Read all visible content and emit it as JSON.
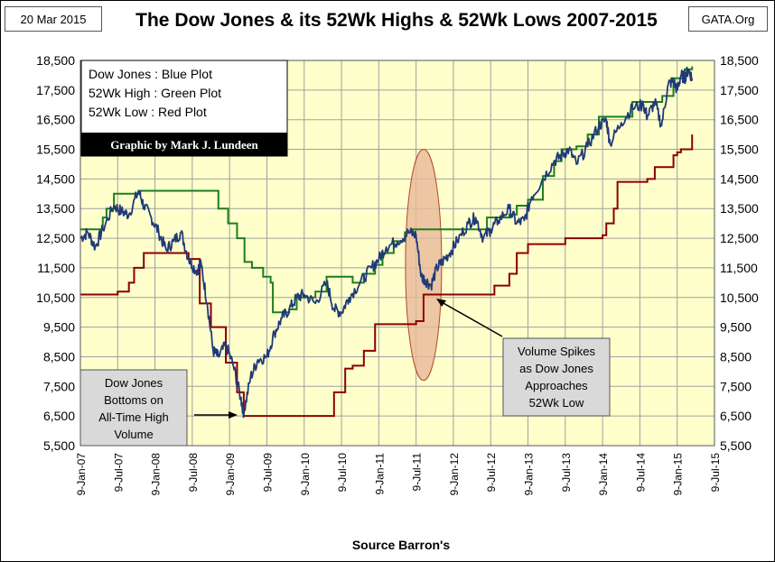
{
  "header": {
    "date": "20 Mar 2015",
    "title": "The Dow Jones & its 52Wk Highs & 52Wk Lows 2007-2015",
    "source_site": "GATA.Org"
  },
  "legend": {
    "lines": [
      "Dow Jones : Blue Plot",
      "52Wk High  : Green Plot",
      "52Wk Low  : Red Plot"
    ],
    "credit": "Graphic by Mark J. Lundeen"
  },
  "annotations": {
    "bottom": [
      "Dow Jones",
      "Bottoms on",
      "All-Time High",
      "Volume"
    ],
    "spike": [
      "Volume Spikes",
      "as Dow Jones",
      "Approaches",
      "52Wk Low"
    ]
  },
  "colors": {
    "plot_bg": "#FFFFCC",
    "grid": "#A0A0A0",
    "dow": "#1F3A78",
    "high": "#1E7D1E",
    "low": "#8B0000",
    "ellipse_fill": "#E8B89A",
    "ellipse_stroke": "#B5472A"
  },
  "chart_data": {
    "type": "line",
    "title": "The Dow Jones & its 52Wk Highs & 52Wk Lows 2007-2015",
    "xlabel": "Source Barron's",
    "ylabel": "",
    "ylim": [
      5500,
      18500
    ],
    "xlim": [
      2007.0,
      2015.5
    ],
    "yticks": [
      5500,
      6500,
      7500,
      8500,
      9500,
      10500,
      11500,
      12500,
      13500,
      14500,
      15500,
      16500,
      17500,
      18500
    ],
    "ytick_labels": [
      "5,500",
      "6,500",
      "7,500",
      "8,500",
      "9,500",
      "10,500",
      "11,500",
      "12,500",
      "13,500",
      "14,500",
      "15,500",
      "16,500",
      "17,500",
      "18,500"
    ],
    "xticks": [
      2007.0,
      2007.5,
      2008.0,
      2008.5,
      2009.0,
      2009.5,
      2010.0,
      2010.5,
      2011.0,
      2011.5,
      2012.0,
      2012.5,
      2013.0,
      2013.5,
      2014.0,
      2014.5,
      2015.0,
      2015.5
    ],
    "xtick_labels": [
      "9-Jan-07",
      "9-Jul-07",
      "9-Jan-08",
      "9-Jul-08",
      "9-Jan-09",
      "9-Jul-09",
      "9-Jan-10",
      "9-Jul-10",
      "9-Jan-11",
      "9-Jul-11",
      "9-Jan-12",
      "9-Jul-12",
      "9-Jan-13",
      "9-Jul-13",
      "9-Jan-14",
      "9-Jul-14",
      "9-Jan-15",
      "9-Jul-15"
    ],
    "grid": true,
    "series": [
      {
        "name": "Dow Jones",
        "color": "#1F3A78",
        "x": [
          2007.0,
          2007.1,
          2007.2,
          2007.3,
          2007.45,
          2007.55,
          2007.65,
          2007.78,
          2007.85,
          2007.95,
          2008.05,
          2008.15,
          2008.25,
          2008.35,
          2008.45,
          2008.55,
          2008.62,
          2008.7,
          2008.78,
          2008.85,
          2008.95,
          2009.05,
          2009.15,
          2009.19,
          2009.28,
          2009.38,
          2009.5,
          2009.6,
          2009.7,
          2009.8,
          2009.9,
          2010.0,
          2010.15,
          2010.3,
          2010.4,
          2010.5,
          2010.6,
          2010.75,
          2010.9,
          2011.0,
          2011.1,
          2011.25,
          2011.4,
          2011.5,
          2011.57,
          2011.62,
          2011.7,
          2011.78,
          2011.85,
          2011.95,
          2012.05,
          2012.2,
          2012.3,
          2012.4,
          2012.5,
          2012.6,
          2012.75,
          2012.85,
          2012.95,
          2013.05,
          2013.2,
          2013.35,
          2013.45,
          2013.55,
          2013.65,
          2013.8,
          2013.95,
          2014.05,
          2014.1,
          2014.25,
          2014.4,
          2014.55,
          2014.6,
          2014.7,
          2014.79,
          2014.88,
          2014.95,
          2015.0,
          2015.05,
          2015.1,
          2015.15,
          2015.2
        ],
        "values": [
          12500,
          12700,
          12200,
          12800,
          13600,
          13400,
          13300,
          14100,
          13600,
          13200,
          12700,
          12100,
          12400,
          12700,
          11800,
          11400,
          11600,
          10300,
          8700,
          8500,
          8900,
          8200,
          7100,
          6600,
          7800,
          8400,
          8500,
          9300,
          9800,
          10100,
          10500,
          10600,
          10300,
          11000,
          10100,
          10000,
          10500,
          11000,
          11500,
          11800,
          12200,
          12400,
          12700,
          12600,
          11200,
          11100,
          10900,
          11500,
          11700,
          12000,
          12400,
          13000,
          13200,
          12500,
          12800,
          13100,
          13500,
          13000,
          13100,
          13900,
          14500,
          15100,
          15300,
          15500,
          15000,
          15600,
          16300,
          16500,
          15700,
          16400,
          16900,
          17000,
          16600,
          17100,
          16300,
          17700,
          17800,
          17500,
          18000,
          17900,
          18200,
          17900
        ]
      },
      {
        "name": "52Wk High",
        "color": "#1E7D1E",
        "x": [
          2007.0,
          2007.2,
          2007.3,
          2007.35,
          2007.45,
          2007.55,
          2007.78,
          2008.8,
          2008.85,
          2008.98,
          2009.1,
          2009.2,
          2009.3,
          2009.45,
          2009.55,
          2009.58,
          2009.7,
          2009.8,
          2009.9,
          2010.15,
          2010.3,
          2010.5,
          2010.65,
          2010.8,
          2010.95,
          2011.05,
          2011.2,
          2011.35,
          2011.45,
          2011.5,
          2012.35,
          2012.45,
          2012.75,
          2012.85,
          2013.0,
          2013.2,
          2013.35,
          2013.45,
          2013.65,
          2013.8,
          2013.95,
          2014.0,
          2014.25,
          2014.4,
          2014.55,
          2014.8,
          2014.95,
          2015.1,
          2015.2
        ],
        "values": [
          12800,
          12800,
          13200,
          13500,
          14000,
          14000,
          14100,
          14100,
          13500,
          13000,
          12500,
          11700,
          11500,
          11200,
          11000,
          10000,
          10000,
          10100,
          10500,
          10700,
          11200,
          11200,
          11000,
          11300,
          11600,
          12000,
          12400,
          12700,
          12800,
          12800,
          12800,
          13200,
          13300,
          13600,
          13800,
          14600,
          15100,
          15500,
          15600,
          16000,
          16600,
          16600,
          16600,
          17100,
          17100,
          17300,
          17900,
          18200,
          18300
        ]
      },
      {
        "name": "52Wk Low",
        "color": "#8B0000",
        "x": [
          2007.0,
          2007.5,
          2007.65,
          2007.72,
          2007.85,
          2008.0,
          2008.45,
          2008.6,
          2008.75,
          2008.95,
          2009.1,
          2009.19,
          2010.35,
          2010.4,
          2010.55,
          2010.65,
          2010.8,
          2010.95,
          2011.5,
          2011.6,
          2012.5,
          2012.55,
          2012.75,
          2012.85,
          2013.0,
          2013.5,
          2014.0,
          2014.05,
          2014.15,
          2014.2,
          2014.6,
          2014.7,
          2014.95,
          2015.0,
          2015.05,
          2015.2
        ],
        "values": [
          10600,
          10700,
          11000,
          11500,
          12000,
          12000,
          11800,
          10300,
          9500,
          8300,
          7300,
          6500,
          6500,
          7300,
          8100,
          8200,
          8700,
          9600,
          9700,
          10600,
          10600,
          10900,
          11300,
          12000,
          12300,
          12500,
          12600,
          13000,
          13500,
          14400,
          14500,
          14900,
          15300,
          15400,
          15500,
          16000
        ]
      }
    ]
  }
}
